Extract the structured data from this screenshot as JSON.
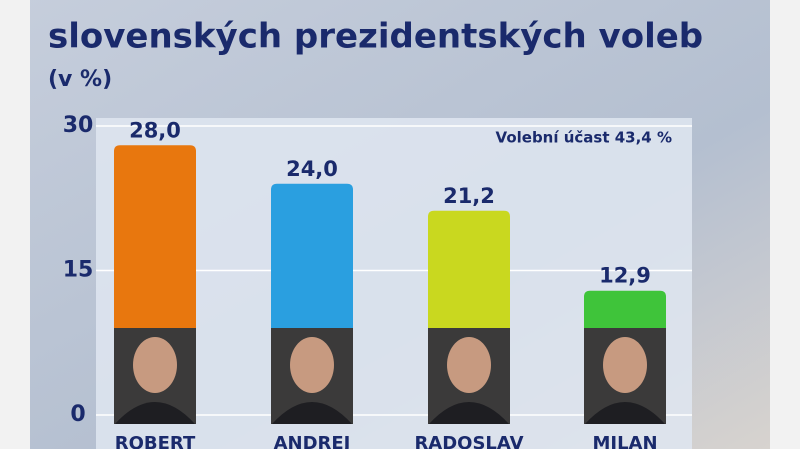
{
  "chart_data": {
    "type": "bar",
    "title": "slovenských prezidentských voleb",
    "subtitle": "(v %)",
    "annotation": "Volební účast 43,4 %",
    "categories": [
      "ROBERT",
      "ANDREJ",
      "RADOSLAV",
      "MILAN"
    ],
    "values": [
      28.0,
      24.0,
      21.2,
      12.9
    ],
    "value_labels": [
      "28,0",
      "24,0",
      "21,2",
      "12,9"
    ],
    "colors": [
      "#e8770e",
      "#2a9fe0",
      "#c9d81f",
      "#3fc43a"
    ],
    "ylim": [
      0,
      30
    ],
    "yticks": [
      0,
      15,
      30
    ],
    "grid": true
  }
}
